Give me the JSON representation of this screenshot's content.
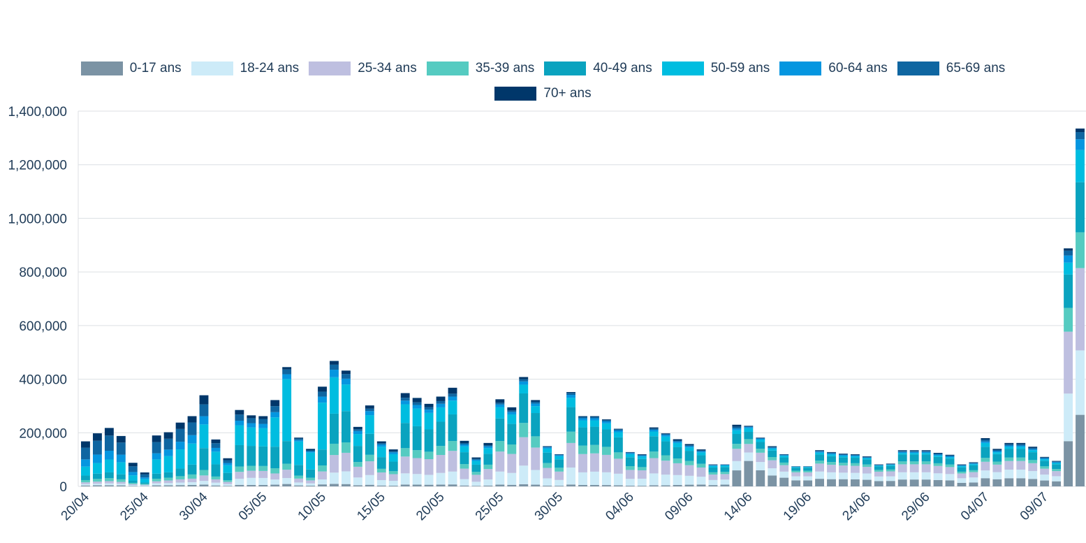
{
  "chart_data": {
    "type": "bar",
    "stacked": true,
    "title": "",
    "xlabel": "",
    "ylabel": "",
    "ylim": [
      0,
      1400000
    ],
    "yticks": [
      0,
      200000,
      400000,
      600000,
      800000,
      1000000,
      1200000,
      1400000
    ],
    "ytick_labels": [
      "0",
      "200,000",
      "400,000",
      "600,000",
      "800,000",
      "1,000,000",
      "1,200,000",
      "1,400,000"
    ],
    "grid": true,
    "legend_position": "top",
    "categories": [
      "20/04",
      "21/04",
      "22/04",
      "23/04",
      "24/04",
      "25/04",
      "26/04",
      "27/04",
      "28/04",
      "29/04",
      "30/04",
      "01/05",
      "02/05",
      "03/05",
      "04/05",
      "05/05",
      "06/05",
      "07/05",
      "08/05",
      "09/05",
      "10/05",
      "11/05",
      "12/05",
      "13/05",
      "14/05",
      "15/05",
      "16/05",
      "17/05",
      "18/05",
      "19/05",
      "20/05",
      "21/05",
      "22/05",
      "23/05",
      "24/05",
      "25/05",
      "26/05",
      "27/05",
      "28/05",
      "29/05",
      "30/05",
      "31/05",
      "01/06",
      "02/06",
      "03/06",
      "04/06",
      "05/06",
      "06/06",
      "07/06",
      "08/06",
      "09/06",
      "10/06",
      "11/06",
      "12/06",
      "13/06",
      "14/06",
      "15/06",
      "16/06",
      "17/06",
      "18/06",
      "19/06",
      "20/06",
      "21/06",
      "22/06",
      "23/06",
      "24/06",
      "25/06",
      "26/06",
      "27/06",
      "28/06",
      "29/06",
      "30/06",
      "01/07",
      "02/07",
      "03/07",
      "04/07",
      "05/07",
      "06/07",
      "07/07",
      "08/07",
      "09/07",
      "10/07",
      "11/07",
      "12/07",
      "13/07"
    ],
    "xtick_labels": [
      "20/04",
      "",
      "",
      "",
      "",
      "25/04",
      "",
      "",
      "",
      "",
      "30/04",
      "",
      "",
      "",
      "",
      "05/05",
      "",
      "",
      "",
      "",
      "10/05",
      "",
      "",
      "",
      "",
      "15/05",
      "",
      "",
      "",
      "",
      "20/05",
      "",
      "",
      "",
      "",
      "25/05",
      "",
      "",
      "",
      "",
      "30/05",
      "",
      "",
      "",
      "",
      "",
      "04/06",
      "",
      "",
      "",
      "",
      "09/06",
      "",
      "",
      "",
      "",
      "14/06",
      "",
      "",
      "",
      "",
      "19/06",
      "",
      "",
      "",
      "",
      "24/06",
      "",
      "",
      "",
      "",
      "29/06",
      "",
      "",
      "",
      "",
      "04/07",
      "",
      "",
      "",
      "",
      "09/07",
      "",
      "",
      "",
      ""
    ],
    "totals": [
      168000,
      198000,
      218000,
      188000,
      88000,
      52000,
      190000,
      202000,
      238000,
      262000,
      340000,
      175000,
      105000,
      285000,
      265000,
      262000,
      322000,
      445000,
      182000,
      140000,
      372000,
      468000,
      432000,
      222000,
      302000,
      168000,
      138000,
      348000,
      330000,
      308000,
      335000,
      368000,
      170000,
      108000,
      162000,
      325000,
      295000,
      408000,
      322000,
      150000,
      120000,
      352000,
      262000,
      262000,
      250000,
      215000,
      128000,
      120000,
      220000,
      198000,
      176000,
      158000,
      138000,
      82000,
      82000,
      230000,
      226000,
      182000,
      150000,
      120000,
      75000,
      75000,
      135000,
      128000,
      122000,
      120000,
      112000,
      82000,
      85000,
      135000,
      135000,
      135000,
      125000,
      118000,
      82000,
      90000,
      180000,
      140000,
      162000,
      162000,
      148000,
      110000,
      95000,
      888000,
      1335000
    ],
    "series": [
      {
        "name": "0-17 ans",
        "color": "#7b93a4",
        "fractions": [
          0.02,
          0.02,
          0.02,
          0.02,
          0.02,
          0.02,
          0.02,
          0.02,
          0.02,
          0.02,
          0.02,
          0.02,
          0.02,
          0.02,
          0.02,
          0.02,
          0.02,
          0.02,
          0.02,
          0.02,
          0.02,
          0.02,
          0.02,
          0.02,
          0.02,
          0.02,
          0.02,
          0.02,
          0.02,
          0.02,
          0.02,
          0.02,
          0.02,
          0.02,
          0.02,
          0.02,
          0.02,
          0.02,
          0.02,
          0.02,
          0.02,
          0.02,
          0.02,
          0.02,
          0.02,
          0.02,
          0.02,
          0.02,
          0.02,
          0.02,
          0.03,
          0.04,
          0.05,
          0.06,
          0.08,
          0.26,
          0.42,
          0.33,
          0.27,
          0.27,
          0.3,
          0.3,
          0.21,
          0.21,
          0.22,
          0.22,
          0.22,
          0.24,
          0.24,
          0.19,
          0.19,
          0.19,
          0.19,
          0.19,
          0.16,
          0.16,
          0.17,
          0.19,
          0.19,
          0.19,
          0.19,
          0.2,
          0.2,
          0.19,
          0.2
        ]
      },
      {
        "name": "18-24 ans",
        "color": "#cdebf8",
        "fractions": [
          0.03,
          0.03,
          0.03,
          0.03,
          0.04,
          0.05,
          0.04,
          0.04,
          0.04,
          0.04,
          0.04,
          0.06,
          0.06,
          0.08,
          0.1,
          0.1,
          0.06,
          0.05,
          0.06,
          0.06,
          0.05,
          0.09,
          0.11,
          0.13,
          0.12,
          0.12,
          0.13,
          0.12,
          0.12,
          0.12,
          0.13,
          0.13,
          0.14,
          0.14,
          0.14,
          0.15,
          0.15,
          0.17,
          0.17,
          0.18,
          0.18,
          0.18,
          0.18,
          0.19,
          0.19,
          0.2,
          0.2,
          0.22,
          0.2,
          0.2,
          0.21,
          0.21,
          0.21,
          0.23,
          0.23,
          0.15,
          0.14,
          0.17,
          0.18,
          0.19,
          0.2,
          0.2,
          0.2,
          0.2,
          0.2,
          0.2,
          0.21,
          0.21,
          0.2,
          0.2,
          0.2,
          0.2,
          0.2,
          0.2,
          0.21,
          0.21,
          0.16,
          0.19,
          0.2,
          0.2,
          0.2,
          0.2,
          0.2,
          0.2,
          0.18
        ]
      },
      {
        "name": "25-34 ans",
        "color": "#bebfe0",
        "fractions": [
          0.04,
          0.04,
          0.04,
          0.04,
          0.04,
          0.05,
          0.04,
          0.05,
          0.05,
          0.05,
          0.06,
          0.07,
          0.08,
          0.09,
          0.1,
          0.1,
          0.07,
          0.07,
          0.08,
          0.08,
          0.08,
          0.14,
          0.16,
          0.18,
          0.17,
          0.17,
          0.18,
          0.18,
          0.18,
          0.19,
          0.2,
          0.21,
          0.23,
          0.24,
          0.24,
          0.23,
          0.24,
          0.26,
          0.26,
          0.26,
          0.26,
          0.26,
          0.26,
          0.26,
          0.26,
          0.26,
          0.26,
          0.26,
          0.26,
          0.26,
          0.25,
          0.25,
          0.25,
          0.25,
          0.25,
          0.2,
          0.14,
          0.19,
          0.2,
          0.2,
          0.2,
          0.2,
          0.22,
          0.22,
          0.22,
          0.22,
          0.22,
          0.22,
          0.22,
          0.22,
          0.22,
          0.22,
          0.22,
          0.22,
          0.22,
          0.22,
          0.18,
          0.2,
          0.2,
          0.2,
          0.2,
          0.2,
          0.2,
          0.26,
          0.23
        ]
      },
      {
        "name": "35-39 ans",
        "color": "#55cbc1",
        "fractions": [
          0.05,
          0.05,
          0.05,
          0.05,
          0.05,
          0.06,
          0.05,
          0.05,
          0.05,
          0.06,
          0.06,
          0.06,
          0.06,
          0.07,
          0.07,
          0.07,
          0.06,
          0.05,
          0.06,
          0.07,
          0.06,
          0.09,
          0.09,
          0.08,
          0.08,
          0.08,
          0.08,
          0.09,
          0.09,
          0.09,
          0.1,
          0.1,
          0.1,
          0.1,
          0.1,
          0.12,
          0.12,
          0.13,
          0.13,
          0.12,
          0.12,
          0.12,
          0.12,
          0.12,
          0.12,
          0.11,
          0.11,
          0.1,
          0.11,
          0.1,
          0.1,
          0.1,
          0.1,
          0.1,
          0.1,
          0.08,
          0.08,
          0.08,
          0.08,
          0.08,
          0.08,
          0.08,
          0.08,
          0.08,
          0.08,
          0.08,
          0.08,
          0.08,
          0.08,
          0.08,
          0.08,
          0.08,
          0.08,
          0.08,
          0.08,
          0.08,
          0.08,
          0.08,
          0.08,
          0.08,
          0.08,
          0.08,
          0.08,
          0.1,
          0.1
        ]
      },
      {
        "name": "40-49 ans",
        "color": "#0aa3bf",
        "fractions": [
          0.1,
          0.1,
          0.1,
          0.1,
          0.1,
          0.1,
          0.1,
          0.1,
          0.12,
          0.14,
          0.24,
          0.26,
          0.26,
          0.28,
          0.28,
          0.28,
          0.25,
          0.19,
          0.22,
          0.22,
          0.16,
          0.24,
          0.27,
          0.27,
          0.26,
          0.26,
          0.26,
          0.27,
          0.27,
          0.27,
          0.27,
          0.27,
          0.26,
          0.25,
          0.25,
          0.26,
          0.26,
          0.27,
          0.27,
          0.26,
          0.26,
          0.26,
          0.26,
          0.26,
          0.26,
          0.26,
          0.26,
          0.25,
          0.26,
          0.26,
          0.24,
          0.24,
          0.23,
          0.22,
          0.22,
          0.16,
          0.12,
          0.14,
          0.16,
          0.16,
          0.15,
          0.15,
          0.17,
          0.17,
          0.17,
          0.17,
          0.17,
          0.16,
          0.16,
          0.19,
          0.19,
          0.19,
          0.19,
          0.19,
          0.2,
          0.2,
          0.23,
          0.2,
          0.2,
          0.2,
          0.2,
          0.19,
          0.19,
          0.14,
          0.14
        ]
      },
      {
        "name": "50-59 ans",
        "color": "#00bde0",
        "fractions": [
          0.2,
          0.2,
          0.22,
          0.24,
          0.22,
          0.24,
          0.28,
          0.3,
          0.3,
          0.3,
          0.26,
          0.27,
          0.27,
          0.26,
          0.26,
          0.26,
          0.34,
          0.52,
          0.48,
          0.45,
          0.47,
          0.29,
          0.23,
          0.2,
          0.23,
          0.23,
          0.2,
          0.2,
          0.2,
          0.2,
          0.16,
          0.14,
          0.13,
          0.13,
          0.13,
          0.13,
          0.12,
          0.08,
          0.08,
          0.1,
          0.1,
          0.1,
          0.1,
          0.09,
          0.09,
          0.09,
          0.09,
          0.08,
          0.08,
          0.09,
          0.09,
          0.08,
          0.08,
          0.07,
          0.07,
          0.06,
          0.06,
          0.05,
          0.05,
          0.05,
          0.03,
          0.03,
          0.05,
          0.05,
          0.04,
          0.04,
          0.04,
          0.03,
          0.04,
          0.04,
          0.04,
          0.04,
          0.04,
          0.04,
          0.05,
          0.05,
          0.08,
          0.05,
          0.05,
          0.05,
          0.05,
          0.05,
          0.05,
          0.05,
          0.09
        ]
      },
      {
        "name": "60-64 ans",
        "color": "#0596e0",
        "fractions": [
          0.16,
          0.16,
          0.15,
          0.15,
          0.14,
          0.12,
          0.12,
          0.12,
          0.12,
          0.12,
          0.09,
          0.08,
          0.08,
          0.06,
          0.06,
          0.06,
          0.06,
          0.04,
          0.03,
          0.03,
          0.06,
          0.06,
          0.05,
          0.05,
          0.05,
          0.05,
          0.05,
          0.04,
          0.04,
          0.04,
          0.04,
          0.04,
          0.04,
          0.04,
          0.04,
          0.03,
          0.03,
          0.03,
          0.03,
          0.03,
          0.03,
          0.03,
          0.03,
          0.03,
          0.03,
          0.03,
          0.03,
          0.03,
          0.03,
          0.03,
          0.03,
          0.03,
          0.03,
          0.03,
          0.02,
          0.03,
          0.02,
          0.02,
          0.02,
          0.02,
          0.02,
          0.02,
          0.03,
          0.03,
          0.03,
          0.03,
          0.02,
          0.02,
          0.02,
          0.03,
          0.03,
          0.03,
          0.03,
          0.03,
          0.03,
          0.03,
          0.03,
          0.03,
          0.03,
          0.03,
          0.03,
          0.03,
          0.03,
          0.03,
          0.03
        ]
      },
      {
        "name": "65-69 ans",
        "color": "#0f66a1",
        "fractions": [
          0.26,
          0.26,
          0.26,
          0.24,
          0.24,
          0.22,
          0.22,
          0.2,
          0.2,
          0.18,
          0.13,
          0.1,
          0.1,
          0.08,
          0.07,
          0.07,
          0.07,
          0.04,
          0.03,
          0.03,
          0.05,
          0.04,
          0.04,
          0.03,
          0.03,
          0.03,
          0.03,
          0.03,
          0.03,
          0.03,
          0.03,
          0.03,
          0.03,
          0.03,
          0.03,
          0.02,
          0.02,
          0.02,
          0.02,
          0.02,
          0.02,
          0.02,
          0.02,
          0.02,
          0.02,
          0.02,
          0.02,
          0.02,
          0.02,
          0.02,
          0.02,
          0.02,
          0.02,
          0.02,
          0.02,
          0.03,
          0.01,
          0.01,
          0.02,
          0.02,
          0.01,
          0.01,
          0.02,
          0.02,
          0.02,
          0.02,
          0.02,
          0.02,
          0.02,
          0.03,
          0.03,
          0.03,
          0.03,
          0.03,
          0.03,
          0.03,
          0.04,
          0.03,
          0.03,
          0.03,
          0.03,
          0.03,
          0.03,
          0.02,
          0.02
        ]
      },
      {
        "name": "70+ ans",
        "color": "#00376a",
        "fractions": [
          0.14,
          0.14,
          0.13,
          0.13,
          0.15,
          0.14,
          0.13,
          0.12,
          0.1,
          0.09,
          0.1,
          0.08,
          0.07,
          0.06,
          0.04,
          0.04,
          0.07,
          0.02,
          0.02,
          0.04,
          0.05,
          0.03,
          0.03,
          0.04,
          0.04,
          0.04,
          0.05,
          0.05,
          0.05,
          0.04,
          0.05,
          0.06,
          0.05,
          0.05,
          0.05,
          0.04,
          0.04,
          0.02,
          0.02,
          0.01,
          0.01,
          0.01,
          0.01,
          0.01,
          0.01,
          0.01,
          0.01,
          0.02,
          0.02,
          0.01,
          0.03,
          0.03,
          0.03,
          0.02,
          0.01,
          0.03,
          0.01,
          0.01,
          0.02,
          0.01,
          0.01,
          0.01,
          0.02,
          0.02,
          0.02,
          0.02,
          0.02,
          0.02,
          0.02,
          0.02,
          0.02,
          0.02,
          0.02,
          0.02,
          0.02,
          0.02,
          0.03,
          0.03,
          0.03,
          0.03,
          0.03,
          0.02,
          0.02,
          0.01,
          0.01
        ]
      }
    ]
  }
}
